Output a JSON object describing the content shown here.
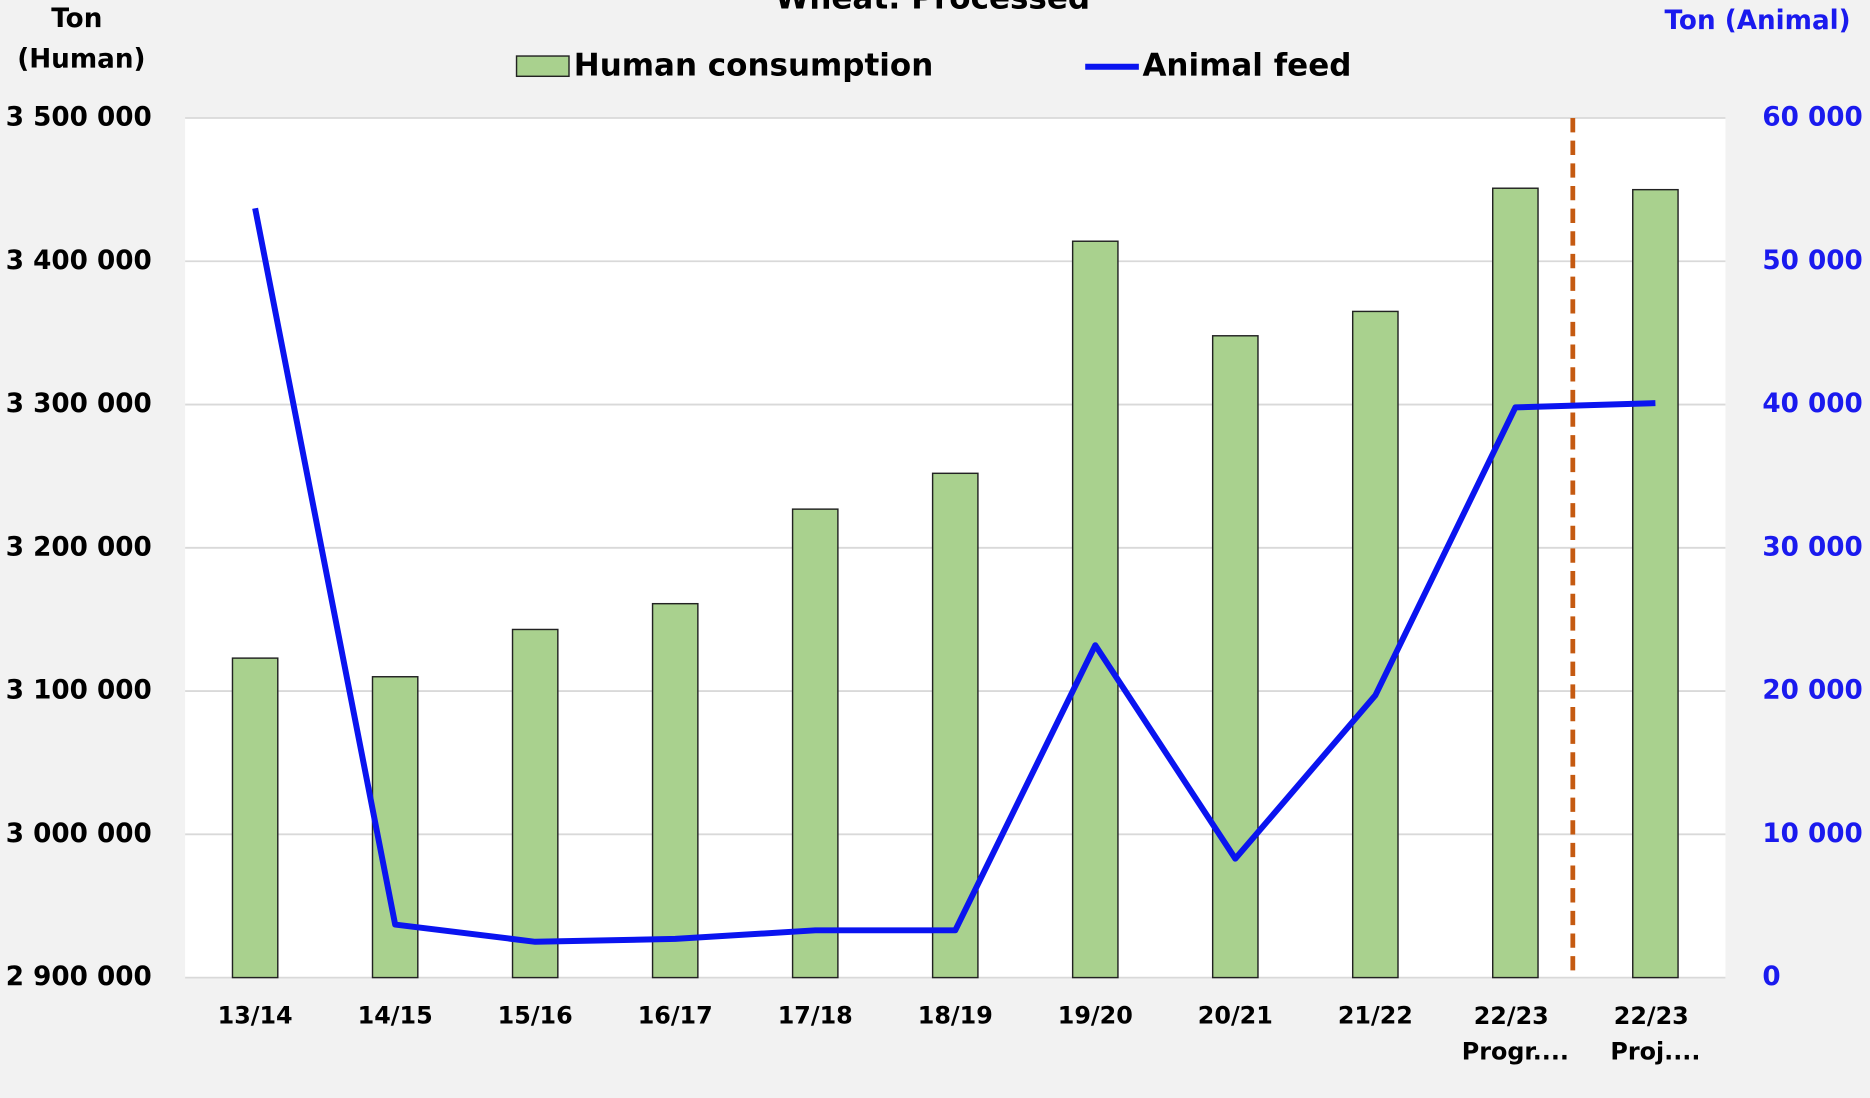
{
  "chart_data": {
    "type": "bar-line",
    "title": "Wheat: Processed",
    "y_label": "Ton (Human)",
    "y2_label": "Ton (Animal)",
    "categories": [
      "13/14",
      "14/15",
      "15/16",
      "16/17",
      "17/18",
      "18/19",
      "19/20",
      "20/21",
      "21/22",
      "22/23 Progr....",
      "22/23 Proj...."
    ],
    "series": [
      {
        "name": "Human consumption",
        "type": "bar",
        "color": "#a9d18e",
        "values": [
          3123000,
          3110000,
          3143000,
          3161000,
          3227000,
          3252000,
          3414000,
          3348000,
          3365000,
          3451000,
          3450000
        ]
      },
      {
        "name": "Animal feed",
        "type": "line",
        "axis": "y2",
        "color": "#0a14f0",
        "values": [
          53700,
          3700,
          2500,
          2700,
          3300,
          3300,
          23200,
          8300,
          19700,
          39800,
          40100
        ]
      }
    ],
    "ylim": [
      2900000,
      3500000
    ],
    "yticks": [
      {
        "value": 2900000,
        "label": "2 900 000"
      },
      {
        "value": 3000000,
        "label": "3 000 000"
      },
      {
        "value": 3100000,
        "label": "3 100 000"
      },
      {
        "value": 3200000,
        "label": "3 200 000"
      },
      {
        "value": 3300000,
        "label": "3 300 000"
      },
      {
        "value": 3400000,
        "label": "3 400 000"
      },
      {
        "value": 3500000,
        "label": "3 500 000"
      }
    ],
    "y2lim": [
      0,
      60000
    ],
    "y2ticks": [
      0,
      {
        "value": 10000,
        "label": "10 000"
      },
      {
        "value": 20000,
        "label": "20 000"
      },
      {
        "value": 30000,
        "label": "30 000"
      },
      {
        "value": 40000,
        "label": "40 000"
      },
      {
        "value": 50000,
        "label": "50 000"
      },
      {
        "value": 60000,
        "label": "60 000"
      }
    ],
    "grid": true
  }
}
